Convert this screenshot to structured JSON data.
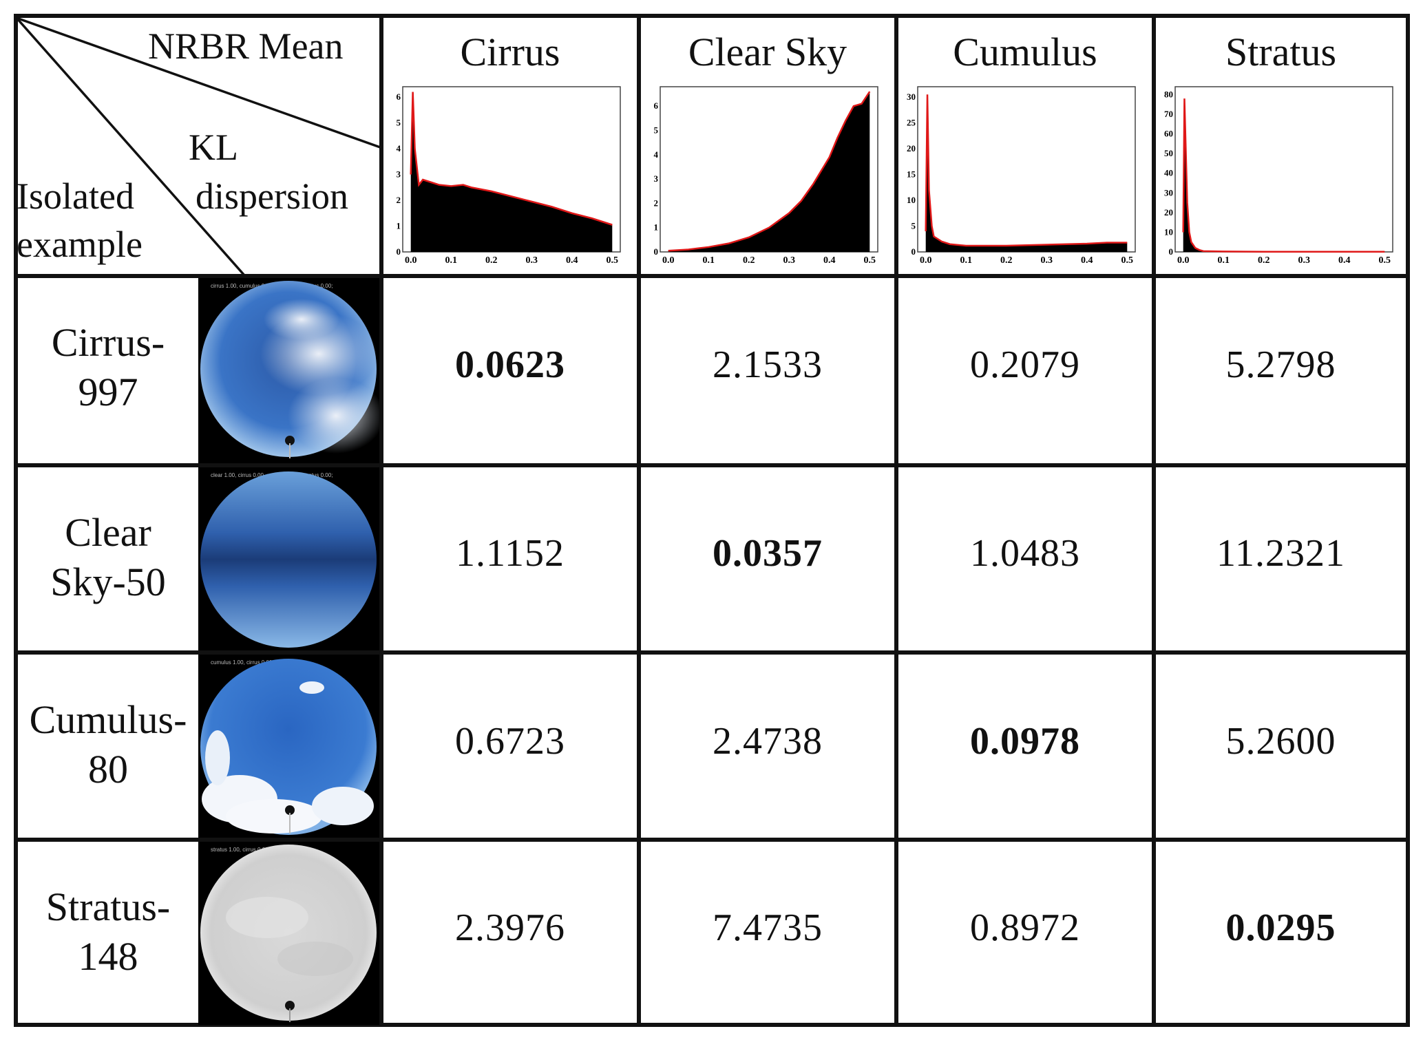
{
  "header": {
    "corner": {
      "top_label": "NRBR Mean",
      "middle_label_line1": "KL",
      "middle_label_line2": "dispersion",
      "bottom_label_line1": "Isolated",
      "bottom_label_line2": "example"
    },
    "columns": [
      "Cirrus",
      "Clear Sky",
      "Cumulus",
      "Stratus"
    ]
  },
  "rows": [
    {
      "label_line1": "Cirrus-",
      "label_line2": "997",
      "image": "cirrus-sky",
      "values": [
        "0.0623",
        "2.1533",
        "0.2079",
        "5.2798"
      ],
      "best_index": 0
    },
    {
      "label_line1": "Clear",
      "label_line2": "Sky-50",
      "image": "clear-sky",
      "values": [
        "1.1152",
        "0.0357",
        "1.0483",
        "11.2321"
      ],
      "best_index": 1
    },
    {
      "label_line1": "Cumulus-",
      "label_line2": "80",
      "image": "cumulus-sky",
      "values": [
        "0.6723",
        "2.4738",
        "0.0978",
        "5.2600"
      ],
      "best_index": 2
    },
    {
      "label_line1": "Stratus-",
      "label_line2": "148",
      "image": "stratus-sky",
      "values": [
        "2.3976",
        "7.4735",
        "0.8972",
        "0.0295"
      ],
      "best_index": 3
    }
  ],
  "chart_data": [
    {
      "type": "area",
      "name": "Cirrus",
      "x_ticks": [
        "0.0",
        "0.1",
        "0.2",
        "0.3",
        "0.4",
        "0.5"
      ],
      "y_ticks": [
        "0",
        "1",
        "2",
        "3",
        "4",
        "5",
        "6"
      ],
      "ylim": [
        0,
        6.4
      ],
      "xlim": [
        -0.02,
        0.52
      ],
      "x": [
        0.0,
        0.005,
        0.01,
        0.02,
        0.03,
        0.05,
        0.07,
        0.1,
        0.13,
        0.15,
        0.2,
        0.25,
        0.3,
        0.35,
        0.4,
        0.45,
        0.5
      ],
      "y": [
        3.0,
        6.2,
        4.0,
        2.6,
        2.8,
        2.7,
        2.6,
        2.55,
        2.6,
        2.5,
        2.35,
        2.15,
        1.95,
        1.75,
        1.5,
        1.3,
        1.05
      ]
    },
    {
      "type": "area",
      "name": "Clear Sky",
      "x_ticks": [
        "0.0",
        "0.1",
        "0.2",
        "0.3",
        "0.4",
        "0.5"
      ],
      "y_ticks": [
        "0",
        "1",
        "2",
        "3",
        "4",
        "5",
        "6"
      ],
      "ylim": [
        0,
        6.8
      ],
      "xlim": [
        -0.02,
        0.52
      ],
      "x": [
        0.0,
        0.05,
        0.1,
        0.15,
        0.2,
        0.25,
        0.3,
        0.33,
        0.36,
        0.4,
        0.42,
        0.44,
        0.46,
        0.48,
        0.5
      ],
      "y": [
        0.05,
        0.1,
        0.2,
        0.35,
        0.6,
        1.0,
        1.6,
        2.1,
        2.8,
        3.9,
        4.7,
        5.4,
        6.0,
        6.1,
        6.6
      ]
    },
    {
      "type": "area",
      "name": "Cumulus",
      "x_ticks": [
        "0.0",
        "0.1",
        "0.2",
        "0.3",
        "0.4",
        "0.5"
      ],
      "y_ticks": [
        "0",
        "5",
        "10",
        "15",
        "20",
        "25",
        "30"
      ],
      "ylim": [
        0,
        32
      ],
      "xlim": [
        -0.02,
        0.52
      ],
      "x": [
        0.0,
        0.004,
        0.008,
        0.015,
        0.02,
        0.04,
        0.06,
        0.1,
        0.2,
        0.3,
        0.4,
        0.45,
        0.5
      ],
      "y": [
        4.0,
        30.5,
        12.0,
        5.0,
        3.0,
        2.0,
        1.5,
        1.2,
        1.2,
        1.4,
        1.6,
        1.8,
        1.8
      ]
    },
    {
      "type": "area",
      "name": "Stratus",
      "x_ticks": [
        "0.0",
        "0.1",
        "0.2",
        "0.3",
        "0.4",
        "0.5"
      ],
      "y_ticks": [
        "0",
        "10",
        "20",
        "30",
        "40",
        "50",
        "60",
        "70",
        "80"
      ],
      "ylim": [
        0,
        84
      ],
      "xlim": [
        -0.02,
        0.52
      ],
      "x": [
        0.0,
        0.003,
        0.006,
        0.01,
        0.015,
        0.02,
        0.03,
        0.04,
        0.05,
        0.1,
        0.2,
        0.3,
        0.4,
        0.5
      ],
      "y": [
        10,
        78,
        55,
        25,
        10,
        5,
        2,
        1,
        0.4,
        0.2,
        0.1,
        0.1,
        0.1,
        0.1
      ]
    }
  ],
  "colors": {
    "line": "#e01818",
    "fill": "#000000",
    "grid": "#111111"
  }
}
